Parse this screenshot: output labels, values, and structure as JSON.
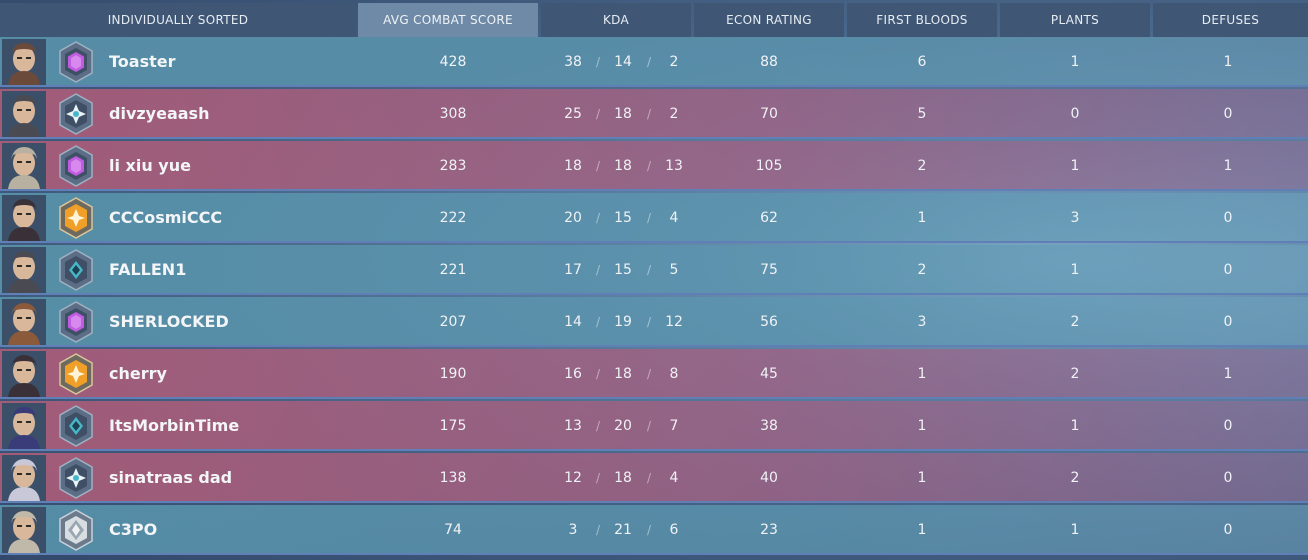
{
  "header": {
    "sort_label": "INDIVIDUALLY SORTED",
    "columns": [
      "AVG COMBAT SCORE",
      "KDA",
      "ECON RATING",
      "FIRST BLOODS",
      "PLANTS",
      "DEFUSES"
    ]
  },
  "colors": {
    "team_a": "#5892aa",
    "team_b": "#aa5c78",
    "rank_purple": "#c05ce0",
    "rank_teal": "#47b7c8",
    "rank_gold": "#f0a028",
    "rank_silver": "#d8dde2"
  },
  "players": [
    {
      "name": "Toaster",
      "team": "a",
      "rank": "rank-purple-icon",
      "acs": "428",
      "k": "38",
      "d": "14",
      "a": "2",
      "econ": "88",
      "fb": "6",
      "plants": "1",
      "defuses": "1"
    },
    {
      "name": "divzyeaash",
      "team": "b",
      "rank": "rank-teal-star-icon",
      "acs": "308",
      "k": "25",
      "d": "18",
      "a": "2",
      "econ": "70",
      "fb": "5",
      "plants": "0",
      "defuses": "0"
    },
    {
      "name": "li xiu yue",
      "team": "b",
      "rank": "rank-purple-icon",
      "acs": "283",
      "k": "18",
      "d": "18",
      "a": "13",
      "econ": "105",
      "fb": "2",
      "plants": "1",
      "defuses": "1"
    },
    {
      "name": "CCCosmiCCC",
      "team": "a",
      "rank": "rank-gold-icon",
      "acs": "222",
      "k": "20",
      "d": "15",
      "a": "4",
      "econ": "62",
      "fb": "1",
      "plants": "3",
      "defuses": "0"
    },
    {
      "name": "FALLEN1",
      "team": "a",
      "rank": "rank-teal-icon",
      "acs": "221",
      "k": "17",
      "d": "15",
      "a": "5",
      "econ": "75",
      "fb": "2",
      "plants": "1",
      "defuses": "0"
    },
    {
      "name": "SHERLOCKED",
      "team": "a",
      "rank": "rank-purple-icon",
      "acs": "207",
      "k": "14",
      "d": "19",
      "a": "12",
      "econ": "56",
      "fb": "3",
      "plants": "2",
      "defuses": "0"
    },
    {
      "name": "cherry",
      "team": "b",
      "rank": "rank-gold-icon",
      "acs": "190",
      "k": "16",
      "d": "18",
      "a": "8",
      "econ": "45",
      "fb": "1",
      "plants": "2",
      "defuses": "1"
    },
    {
      "name": "ItsMorbinTime",
      "team": "b",
      "rank": "rank-teal-icon",
      "acs": "175",
      "k": "13",
      "d": "20",
      "a": "7",
      "econ": "38",
      "fb": "1",
      "plants": "1",
      "defuses": "0"
    },
    {
      "name": "sinatraas dad",
      "team": "b",
      "rank": "rank-teal-star-icon",
      "acs": "138",
      "k": "12",
      "d": "18",
      "a": "4",
      "econ": "40",
      "fb": "1",
      "plants": "2",
      "defuses": "0"
    },
    {
      "name": "C3PO",
      "team": "a",
      "rank": "rank-silver-icon",
      "acs": "74",
      "k": "3",
      "d": "21",
      "a": "6",
      "econ": "23",
      "fb": "1",
      "plants": "1",
      "defuses": "0"
    }
  ]
}
